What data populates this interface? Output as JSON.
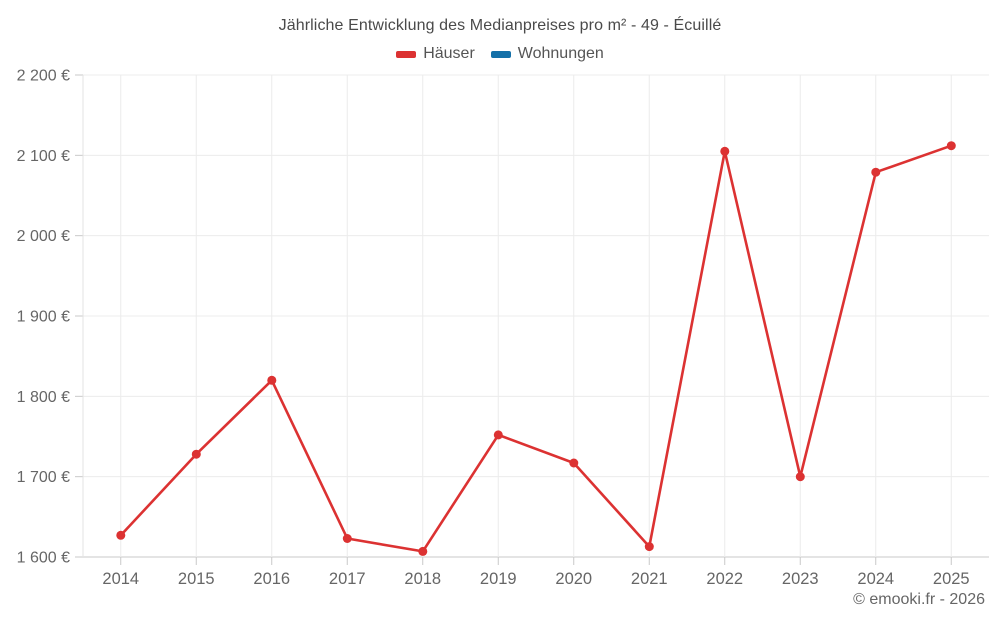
{
  "title": "Jährliche Entwicklung des Medianpreises pro m² - 49 - Écuillé",
  "footer": "© emooki.fr - 2026",
  "legend": {
    "items": [
      {
        "label": "Häuser",
        "color": "#dc3232"
      },
      {
        "label": "Wohnungen",
        "color": "#1470a8"
      }
    ]
  },
  "colors": {
    "haeuser": "#dc3232",
    "wohnungen": "#1470a8",
    "grid": "#ececec",
    "axis": "#c9c9c9",
    "left_axis": "#e3e3e3",
    "tick_text": "#666666",
    "title_text": "#4a4a4a"
  },
  "chart_data": {
    "type": "line",
    "title": "Jährliche Entwicklung des Medianpreises pro m² - 49 - Écuillé",
    "xlabel": "",
    "ylabel": "",
    "categories": [
      "2014",
      "2015",
      "2016",
      "2017",
      "2018",
      "2019",
      "2020",
      "2021",
      "2022",
      "2023",
      "2024",
      "2025"
    ],
    "series": [
      {
        "name": "Häuser",
        "color": "#dc3232",
        "values": [
          1627,
          1728,
          1820,
          1623,
          1607,
          1752,
          1717,
          1613,
          2105,
          1700,
          2079,
          2112
        ]
      },
      {
        "name": "Wohnungen",
        "color": "#1470a8",
        "values": []
      }
    ],
    "ylim": [
      1600,
      2200
    ],
    "y_ticks": [
      {
        "value": 1600,
        "label": "1 600 €"
      },
      {
        "value": 1700,
        "label": "1 700 €"
      },
      {
        "value": 1800,
        "label": "1 800 €"
      },
      {
        "value": 1900,
        "label": "1 900 €"
      },
      {
        "value": 2000,
        "label": "2 000 €"
      },
      {
        "value": 2100,
        "label": "2 100 €"
      },
      {
        "value": 2200,
        "label": "2 200 €"
      }
    ],
    "grid": true,
    "legend_position": "top",
    "unit": "€"
  }
}
